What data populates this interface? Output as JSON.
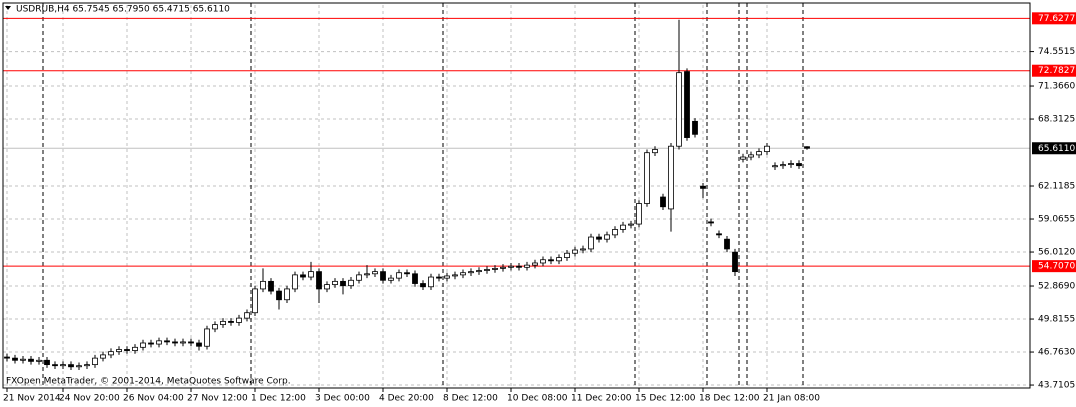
{
  "chart_data": {
    "type": "candlestick",
    "title": "USDRUB,H4  65.7545 65.7950 65.4715 65.6110",
    "watermark": "FXOpen MetaTrader, © 2001-2014, MetaQuotes Software Corp.",
    "categories": [
      "21 Nov 2014",
      null,
      null,
      null,
      null,
      null,
      null,
      "24 Nov 20:00",
      null,
      null,
      null,
      null,
      null,
      null,
      null,
      "26 Nov 04:00",
      null,
      null,
      null,
      null,
      null,
      null,
      null,
      "27 Nov 12:00",
      null,
      null,
      null,
      null,
      null,
      null,
      null,
      "1 Dec 12:00",
      null,
      null,
      null,
      null,
      null,
      null,
      null,
      "3 Dec 00:00",
      null,
      null,
      null,
      null,
      null,
      null,
      null,
      "4 Dec 20:00",
      null,
      null,
      null,
      null,
      null,
      null,
      null,
      "8 Dec 12:00",
      null,
      null,
      null,
      null,
      null,
      null,
      null,
      "10 Dec 08:00",
      null,
      null,
      null,
      null,
      null,
      null,
      null,
      "11 Dec 20:00",
      null,
      null,
      null,
      null,
      null,
      null,
      null,
      "15 Dec 12:00",
      null,
      null,
      null,
      null,
      null,
      null,
      null,
      "18 Dec 12:00",
      null,
      null,
      null,
      null,
      null,
      null,
      null,
      "21 Jan 08:00",
      null,
      null,
      null,
      null,
      null
    ],
    "open": [
      46.3,
      46.2,
      46.0,
      46.1,
      45.9,
      46.0,
      45.6,
      45.5,
      45.6,
      45.4,
      45.5,
      45.6,
      46.2,
      46.5,
      46.8,
      47.0,
      46.9,
      47.2,
      47.6,
      47.5,
      47.8,
      47.7,
      47.6,
      47.7,
      47.6,
      47.3,
      48.9,
      49.3,
      49.6,
      49.5,
      49.9,
      50.4,
      52.6,
      53.3,
      52.4,
      51.6,
      52.6,
      53.9,
      53.7,
      54.2,
      52.6,
      53.0,
      53.3,
      52.9,
      53.4,
      53.9,
      54.0,
      54.2,
      53.4,
      53.6,
      54.1,
      54.0,
      53.1,
      52.8,
      53.7,
      53.6,
      53.8,
      53.9,
      54.1,
      54.2,
      54.3,
      54.4,
      54.5,
      54.6,
      54.7,
      54.6,
      54.8,
      55.0,
      55.3,
      55.2,
      55.5,
      55.9,
      56.2,
      56.3,
      57.4,
      57.2,
      57.6,
      58.1,
      58.5,
      58.6,
      60.5,
      65.2,
      61.1,
      60.0,
      65.8,
      72.7,
      68.1,
      62.1,
      58.8,
      57.7,
      57.2,
      56.0,
      64.6,
      64.8,
      65.0,
      65.3,
      63.9,
      64.0,
      64.1,
      64.2,
      65.7545
    ],
    "high": [
      46.6,
      46.5,
      46.4,
      46.4,
      46.3,
      46.3,
      45.9,
      45.9,
      45.9,
      45.8,
      45.9,
      46.5,
      46.8,
      47.1,
      47.3,
      47.3,
      47.5,
      47.9,
      47.9,
      48.1,
      48.1,
      48.0,
      48.0,
      48.0,
      47.9,
      49.2,
      49.6,
      49.9,
      49.9,
      50.2,
      50.7,
      52.9,
      54.5,
      53.6,
      52.7,
      52.9,
      54.2,
      54.2,
      55.1,
      54.5,
      53.3,
      53.6,
      53.6,
      53.7,
      54.2,
      54.8,
      54.5,
      54.5,
      53.9,
      54.4,
      54.4,
      54.3,
      53.4,
      54.0,
      54.0,
      54.1,
      54.2,
      54.4,
      54.5,
      54.6,
      54.7,
      54.8,
      54.9,
      55.0,
      55.0,
      55.1,
      55.3,
      55.6,
      55.6,
      55.8,
      56.2,
      56.5,
      56.6,
      57.7,
      57.7,
      57.9,
      58.4,
      58.8,
      58.9,
      60.8,
      65.5,
      65.8,
      61.4,
      66.1,
      77.5,
      73.0,
      68.4,
      62.4,
      59.1,
      58.0,
      57.5,
      56.3,
      65.1,
      65.3,
      65.6,
      66.1,
      64.3,
      64.4,
      64.5,
      64.5,
      65.795
    ],
    "low": [
      45.9,
      45.7,
      45.7,
      45.6,
      45.6,
      45.3,
      45.2,
      45.2,
      45.1,
      45.1,
      45.2,
      45.3,
      45.9,
      46.2,
      46.5,
      46.6,
      46.6,
      46.9,
      47.2,
      47.2,
      47.4,
      47.3,
      47.3,
      47.3,
      46.9,
      47.0,
      48.6,
      49.0,
      49.2,
      49.2,
      49.6,
      50.1,
      52.3,
      52.1,
      50.7,
      51.3,
      52.3,
      53.4,
      53.4,
      51.3,
      52.3,
      52.7,
      52.1,
      52.6,
      53.1,
      53.6,
      53.7,
      53.1,
      53.1,
      53.3,
      53.7,
      52.8,
      52.5,
      52.5,
      53.3,
      53.3,
      53.5,
      53.6,
      53.8,
      53.9,
      54.0,
      54.1,
      54.2,
      54.3,
      54.3,
      54.3,
      54.5,
      54.7,
      54.9,
      54.9,
      55.2,
      55.6,
      55.9,
      56.0,
      56.9,
      56.9,
      57.3,
      57.8,
      58.2,
      58.3,
      60.2,
      64.9,
      59.9,
      57.9,
      65.5,
      66.3,
      66.6,
      61.0,
      58.4,
      57.3,
      56.0,
      53.8,
      64.3,
      64.5,
      64.7,
      65.0,
      63.6,
      63.7,
      63.8,
      63.7,
      65.4715
    ],
    "close": [
      46.2,
      46.0,
      46.1,
      45.9,
      46.0,
      45.6,
      45.5,
      45.6,
      45.4,
      45.5,
      45.6,
      46.2,
      46.5,
      46.8,
      47.0,
      46.9,
      47.2,
      47.6,
      47.5,
      47.8,
      47.7,
      47.6,
      47.7,
      47.6,
      47.3,
      48.9,
      49.3,
      49.6,
      49.5,
      49.9,
      50.4,
      52.6,
      53.3,
      52.4,
      51.6,
      52.6,
      53.9,
      53.7,
      54.2,
      52.6,
      53.0,
      53.3,
      52.9,
      53.4,
      53.9,
      54.0,
      54.2,
      53.4,
      53.6,
      54.1,
      54.0,
      53.1,
      52.8,
      53.7,
      53.6,
      53.8,
      53.9,
      54.1,
      54.2,
      54.3,
      54.4,
      54.5,
      54.6,
      54.7,
      54.6,
      54.8,
      55.0,
      55.3,
      55.2,
      55.5,
      55.9,
      56.2,
      56.3,
      57.4,
      57.2,
      57.6,
      58.1,
      58.5,
      58.6,
      60.5,
      65.2,
      65.5,
      60.2,
      65.8,
      72.6,
      66.6,
      66.9,
      61.9,
      58.7,
      57.6,
      56.3,
      54.2,
      64.8,
      65.0,
      65.3,
      65.8,
      64.0,
      64.1,
      64.2,
      64.0,
      65.611
    ],
    "bull_color": "#ffffff",
    "bear_color": "#000000",
    "level_color": "#ff0000",
    "ylim": [
      43.53,
      78.86
    ],
    "yticks": [
      {
        "value": 43.7105,
        "label": "43.7105"
      },
      {
        "value": 46.763,
        "label": "46.7630"
      },
      {
        "value": 49.8155,
        "label": "49.8155"
      },
      {
        "value": 52.869,
        "label": "52.8690"
      },
      {
        "value": 56.012,
        "label": "56.0120"
      },
      {
        "value": 59.0655,
        "label": "59.0655"
      },
      {
        "value": 62.1185,
        "label": "62.1185"
      },
      {
        "value": 68.3125,
        "label": "68.3125"
      },
      {
        "value": 71.366,
        "label": "71.3660"
      },
      {
        "value": 74.5515,
        "label": "74.5515"
      }
    ],
    "levels": [
      {
        "value": 77.6277,
        "label": "77.6277"
      },
      {
        "value": 72.7827,
        "label": "72.7827"
      },
      {
        "value": 54.707,
        "label": "54.7070"
      }
    ],
    "current_price": {
      "value": 65.611,
      "label": "65.6110"
    },
    "grid": true
  }
}
